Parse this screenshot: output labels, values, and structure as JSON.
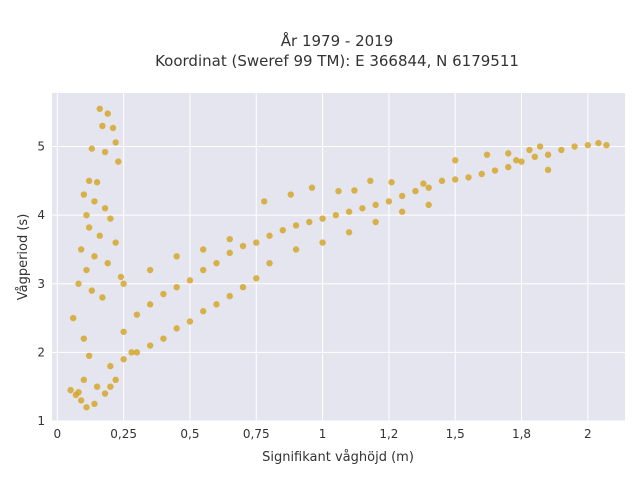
{
  "chart_data": {
    "type": "scatter",
    "title": "År 1979 - 2019",
    "subtitle": "Koordinat (Sweref 99 TM): E 366844, N 6179511",
    "xlabel": "Signifikant våghöjd (m)",
    "ylabel": "Vågperiod (s)",
    "xlim": [
      -0.02,
      2.14
    ],
    "ylim": [
      1.0,
      5.78
    ],
    "x_ticks": [
      0,
      0.25,
      0.5,
      0.75,
      1,
      1.25,
      1.5,
      1.75,
      2
    ],
    "x_tick_labels": [
      "0",
      "0,25",
      "0,5",
      "0,75",
      "1",
      "1,2",
      "1,5",
      "1,8",
      "2"
    ],
    "y_ticks": [
      1,
      2,
      3,
      4,
      5
    ],
    "y_tick_labels": [
      "1",
      "2",
      "3",
      "4",
      "5"
    ],
    "grid": true,
    "colors": {
      "marker": "#d4a21f",
      "plot_background": "#e5e5ef",
      "grid": "#ffffff"
    },
    "series": [
      {
        "points": [
          [
            0.16,
            5.55
          ],
          [
            0.19,
            5.48
          ],
          [
            0.17,
            5.3
          ],
          [
            0.21,
            5.27
          ],
          [
            0.22,
            5.06
          ],
          [
            0.13,
            4.97
          ],
          [
            0.18,
            4.92
          ],
          [
            0.23,
            4.78
          ],
          [
            0.12,
            4.5
          ],
          [
            0.15,
            4.48
          ],
          [
            0.1,
            4.3
          ],
          [
            0.14,
            4.2
          ],
          [
            0.18,
            4.1
          ],
          [
            0.11,
            4.0
          ],
          [
            0.2,
            3.95
          ],
          [
            0.12,
            3.82
          ],
          [
            0.16,
            3.7
          ],
          [
            0.22,
            3.6
          ],
          [
            0.09,
            3.5
          ],
          [
            0.14,
            3.4
          ],
          [
            0.19,
            3.3
          ],
          [
            0.11,
            3.2
          ],
          [
            0.24,
            3.1
          ],
          [
            0.08,
            3.0
          ],
          [
            0.13,
            2.9
          ],
          [
            0.17,
            2.8
          ],
          [
            0.06,
            2.5
          ],
          [
            0.1,
            2.2
          ],
          [
            0.12,
            1.95
          ],
          [
            0.05,
            1.45
          ],
          [
            0.07,
            1.38
          ],
          [
            0.09,
            1.3
          ],
          [
            0.11,
            1.2
          ],
          [
            0.14,
            1.25
          ],
          [
            0.15,
            1.5
          ],
          [
            0.25,
            2.3
          ],
          [
            0.3,
            2.55
          ],
          [
            0.35,
            2.7
          ],
          [
            0.4,
            2.85
          ],
          [
            0.45,
            2.95
          ],
          [
            0.5,
            3.05
          ],
          [
            0.55,
            3.2
          ],
          [
            0.6,
            3.3
          ],
          [
            0.65,
            3.45
          ],
          [
            0.7,
            3.55
          ],
          [
            0.75,
            3.6
          ],
          [
            0.8,
            3.7
          ],
          [
            0.85,
            3.78
          ],
          [
            0.9,
            3.85
          ],
          [
            0.95,
            3.9
          ],
          [
            1.0,
            3.95
          ],
          [
            1.05,
            4.0
          ],
          [
            1.1,
            4.05
          ],
          [
            1.15,
            4.1
          ],
          [
            1.2,
            4.15
          ],
          [
            1.25,
            4.2
          ],
          [
            1.3,
            4.28
          ],
          [
            1.35,
            4.35
          ],
          [
            1.4,
            4.4
          ],
          [
            1.45,
            4.5
          ],
          [
            1.5,
            4.52
          ],
          [
            1.55,
            4.55
          ],
          [
            1.6,
            4.6
          ],
          [
            1.65,
            4.65
          ],
          [
            1.7,
            4.7
          ],
          [
            1.75,
            4.78
          ],
          [
            1.8,
            4.85
          ],
          [
            1.85,
            4.88
          ],
          [
            1.9,
            4.95
          ],
          [
            1.95,
            5.0
          ],
          [
            2.0,
            5.02
          ],
          [
            2.04,
            5.05
          ],
          [
            2.07,
            5.02
          ],
          [
            1.62,
            4.88
          ],
          [
            1.7,
            4.9
          ],
          [
            1.78,
            4.95
          ],
          [
            1.82,
            5.0
          ],
          [
            1.85,
            4.66
          ],
          [
            1.73,
            4.8
          ],
          [
            1.5,
            4.8
          ],
          [
            0.3,
            2.0
          ],
          [
            0.35,
            2.1
          ],
          [
            0.4,
            2.2
          ],
          [
            0.45,
            2.35
          ],
          [
            0.5,
            2.45
          ],
          [
            0.55,
            2.6
          ],
          [
            0.6,
            2.7
          ],
          [
            0.65,
            2.82
          ],
          [
            0.7,
            2.95
          ],
          [
            0.75,
            3.08
          ],
          [
            0.25,
            3.0
          ],
          [
            0.35,
            3.2
          ],
          [
            0.45,
            3.4
          ],
          [
            0.55,
            3.5
          ],
          [
            0.65,
            3.65
          ],
          [
            0.8,
            3.3
          ],
          [
            0.9,
            3.5
          ],
          [
            1.0,
            3.6
          ],
          [
            1.1,
            3.75
          ],
          [
            1.2,
            3.9
          ],
          [
            1.3,
            4.05
          ],
          [
            1.4,
            4.15
          ],
          [
            0.2,
            1.8
          ],
          [
            0.22,
            1.6
          ],
          [
            0.25,
            1.9
          ],
          [
            0.28,
            2.0
          ],
          [
            0.18,
            1.4
          ],
          [
            0.2,
            1.5
          ],
          [
            0.1,
            1.6
          ],
          [
            0.08,
            1.42
          ],
          [
            0.96,
            4.4
          ],
          [
            1.06,
            4.35
          ],
          [
            1.18,
            4.5
          ],
          [
            1.26,
            4.48
          ],
          [
            1.38,
            4.46
          ],
          [
            0.88,
            4.3
          ],
          [
            0.78,
            4.2
          ],
          [
            1.12,
            4.36
          ]
        ]
      }
    ]
  }
}
